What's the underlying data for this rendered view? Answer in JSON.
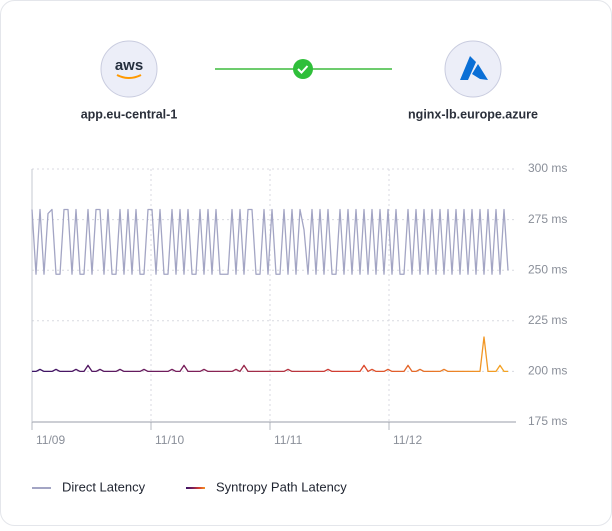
{
  "source": {
    "logo_text": "aws",
    "label": "app.eu-central-1"
  },
  "target": {
    "label": "nginx-lb.europe.azure"
  },
  "chart_data": {
    "type": "line",
    "ylim": [
      175,
      300
    ],
    "yticks": [
      {
        "value": 175,
        "label": "175 ms"
      },
      {
        "value": 200,
        "label": "200 ms"
      },
      {
        "value": 225,
        "label": "225 ms"
      },
      {
        "value": 250,
        "label": "250 ms"
      },
      {
        "value": 275,
        "label": "275 ms"
      },
      {
        "value": 300,
        "label": "300 ms"
      }
    ],
    "xlim": [
      0,
      120
    ],
    "xticks": [
      {
        "value": 0,
        "label": "11/09"
      },
      {
        "value": 30,
        "label": "11/10"
      },
      {
        "value": 60,
        "label": "11/11"
      },
      {
        "value": 90,
        "label": "11/12"
      }
    ],
    "grid": true,
    "series": [
      {
        "name": "Direct Latency",
        "color": "#a3a5c4",
        "values": [
          280,
          248,
          280,
          248,
          278,
          280,
          248,
          248,
          280,
          280,
          248,
          280,
          248,
          248,
          280,
          248,
          280,
          280,
          248,
          280,
          248,
          248,
          280,
          248,
          280,
          248,
          280,
          248,
          248,
          280,
          280,
          248,
          280,
          248,
          248,
          280,
          248,
          280,
          248,
          280,
          248,
          248,
          280,
          248,
          280,
          248,
          280,
          248,
          248,
          248,
          280,
          248,
          280,
          248,
          280,
          280,
          248,
          248,
          280,
          248,
          280,
          248,
          248,
          280,
          248,
          280,
          248,
          280,
          270,
          248,
          280,
          248,
          280,
          248,
          280,
          248,
          248,
          280,
          248,
          280,
          248,
          280,
          248,
          280,
          248,
          280,
          248,
          280,
          248,
          280,
          248,
          280,
          248,
          248,
          280,
          248,
          280,
          248,
          280,
          248,
          280,
          248,
          280,
          248,
          280,
          248,
          280,
          248,
          280,
          248,
          280,
          248,
          280,
          248,
          280,
          248,
          280,
          248,
          280,
          250
        ]
      },
      {
        "name": "Syntropy Path Latency",
        "color": [
          "#3b1466",
          "#7a1e5a",
          "#d9402e",
          "#f5a623"
        ],
        "values": [
          200,
          200,
          201,
          200,
          200,
          200,
          201,
          200,
          200,
          200,
          200,
          201,
          200,
          200,
          203,
          200,
          200,
          201,
          200,
          200,
          200,
          200,
          201,
          200,
          200,
          200,
          200,
          200,
          201,
          200,
          200,
          200,
          200,
          200,
          200,
          201,
          200,
          200,
          203,
          200,
          200,
          200,
          200,
          201,
          200,
          200,
          200,
          200,
          200,
          200,
          200,
          201,
          200,
          203,
          200,
          200,
          200,
          200,
          200,
          200,
          200,
          200,
          200,
          200,
          201,
          200,
          200,
          200,
          200,
          200,
          200,
          200,
          200,
          200,
          201,
          200,
          200,
          200,
          200,
          200,
          200,
          200,
          200,
          203,
          200,
          201,
          200,
          200,
          200,
          201,
          200,
          200,
          200,
          200,
          203,
          200,
          200,
          201,
          200,
          200,
          200,
          200,
          200,
          201,
          200,
          200,
          200,
          200,
          200,
          200,
          200,
          200,
          200,
          217,
          200,
          200,
          200,
          203,
          200,
          200
        ]
      }
    ],
    "legend": "bottom-left"
  }
}
